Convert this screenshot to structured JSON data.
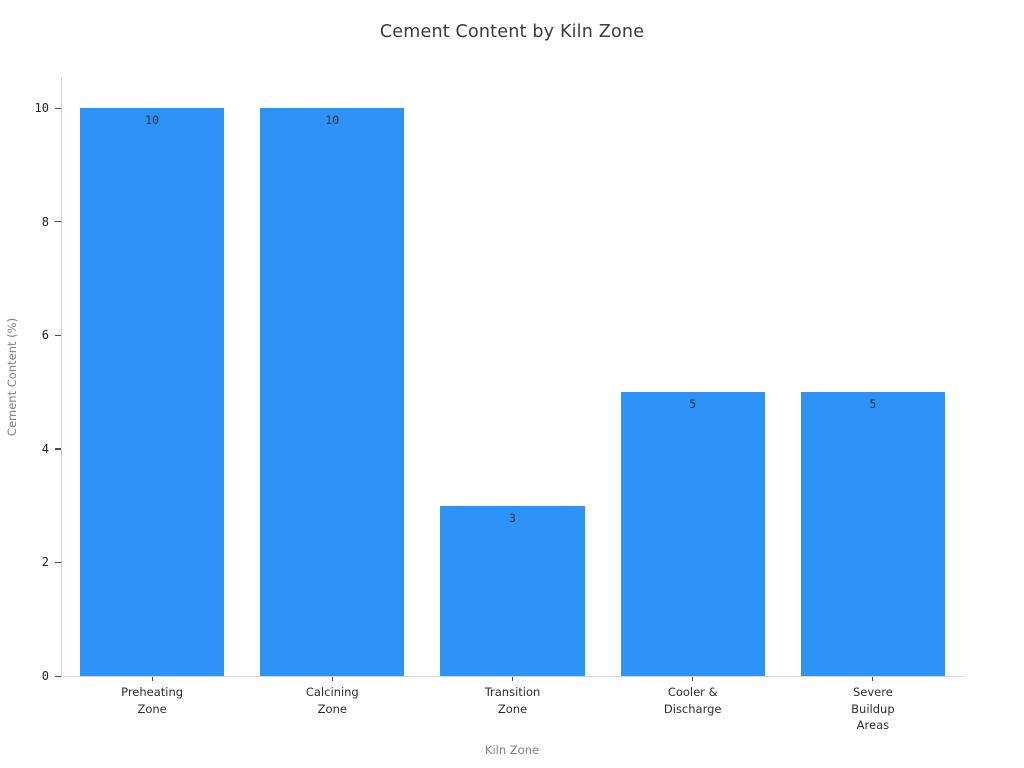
{
  "chart_data": {
    "type": "bar",
    "title": "Cement Content by Kiln Zone",
    "categories": [
      "Preheating\nZone",
      "Calcining\nZone",
      "Transition\nZone",
      "Cooler &\nDischarge",
      "Severe\nBuildup\nAreas"
    ],
    "values": [
      10,
      10,
      3,
      5,
      5
    ],
    "bar_labels": [
      "10",
      "10",
      "3",
      "5",
      "5"
    ],
    "xlabel": "Kiln Zone",
    "ylabel": "Cement Content (%)",
    "ylim": [
      0,
      10.53
    ],
    "yticks": [
      0,
      2,
      4,
      6,
      8,
      10
    ],
    "grid": false,
    "legend_position": "none",
    "bar_color": "#2E93F6",
    "value_label_position": "inside-top"
  },
  "colors": {
    "background": "#ffffff",
    "bar": "#2E93F6",
    "spine": "#cfcfcf",
    "tick_mark": "#4a4a4a",
    "tick_label": "#1f1f1f",
    "title_text": "#3b3b3b",
    "axis_title_text": "#808080"
  }
}
